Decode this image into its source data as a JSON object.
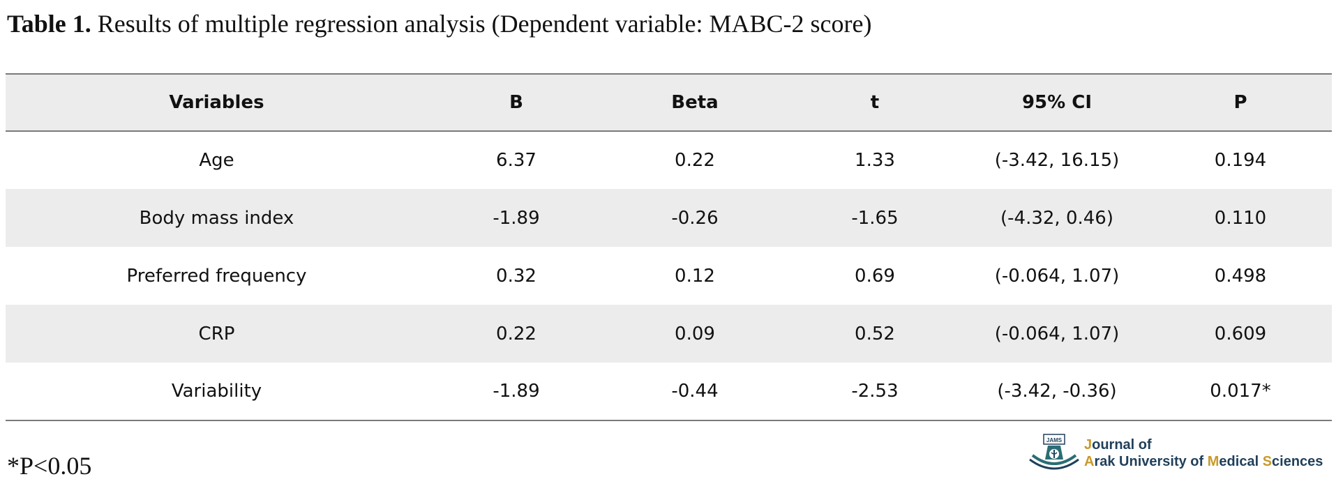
{
  "caption": {
    "label": "Table 1.",
    "text": "Results of multiple regression analysis (Dependent variable: MABC-2 score)"
  },
  "table": {
    "headers": [
      "Variables",
      "B",
      "Beta",
      "t",
      "95% CI",
      "P"
    ],
    "rows": [
      [
        "Age",
        "6.37",
        "0.22",
        "1.33",
        "(-3.42, 16.15)",
        "0.194"
      ],
      [
        "Body mass index",
        "-1.89",
        "-0.26",
        "-1.65",
        "(-4.32, 0.46)",
        "0.110"
      ],
      [
        "Preferred frequency",
        "0.32",
        "0.12",
        "0.69",
        "(-0.064, 1.07)",
        "0.498"
      ],
      [
        "CRP",
        "0.22",
        "0.09",
        "0.52",
        "(-0.064, 1.07)",
        "0.609"
      ],
      [
        "Variability",
        "-1.89",
        "-0.44",
        "-2.53",
        "(-3.42, -0.36)",
        "0.017*"
      ]
    ],
    "stripe_color": "#ececec",
    "rule_color": "#7a7a7a"
  },
  "footnote": "*P<0.05",
  "journal": {
    "logo_icon": "jams-emblem-icon",
    "logo_text": "JAMS",
    "line1": [
      {
        "text": "J",
        "accent": true
      },
      {
        "text": "ournal of",
        "accent": false
      }
    ],
    "line2": [
      {
        "text": "A",
        "accent": true
      },
      {
        "text": "rak University of ",
        "accent": false
      },
      {
        "text": "M",
        "accent": true
      },
      {
        "text": "edical ",
        "accent": false
      },
      {
        "text": "S",
        "accent": true
      },
      {
        "text": "ciences",
        "accent": false
      }
    ],
    "accent_color": "#c79a2a",
    "text_color": "#1f3f5a"
  }
}
